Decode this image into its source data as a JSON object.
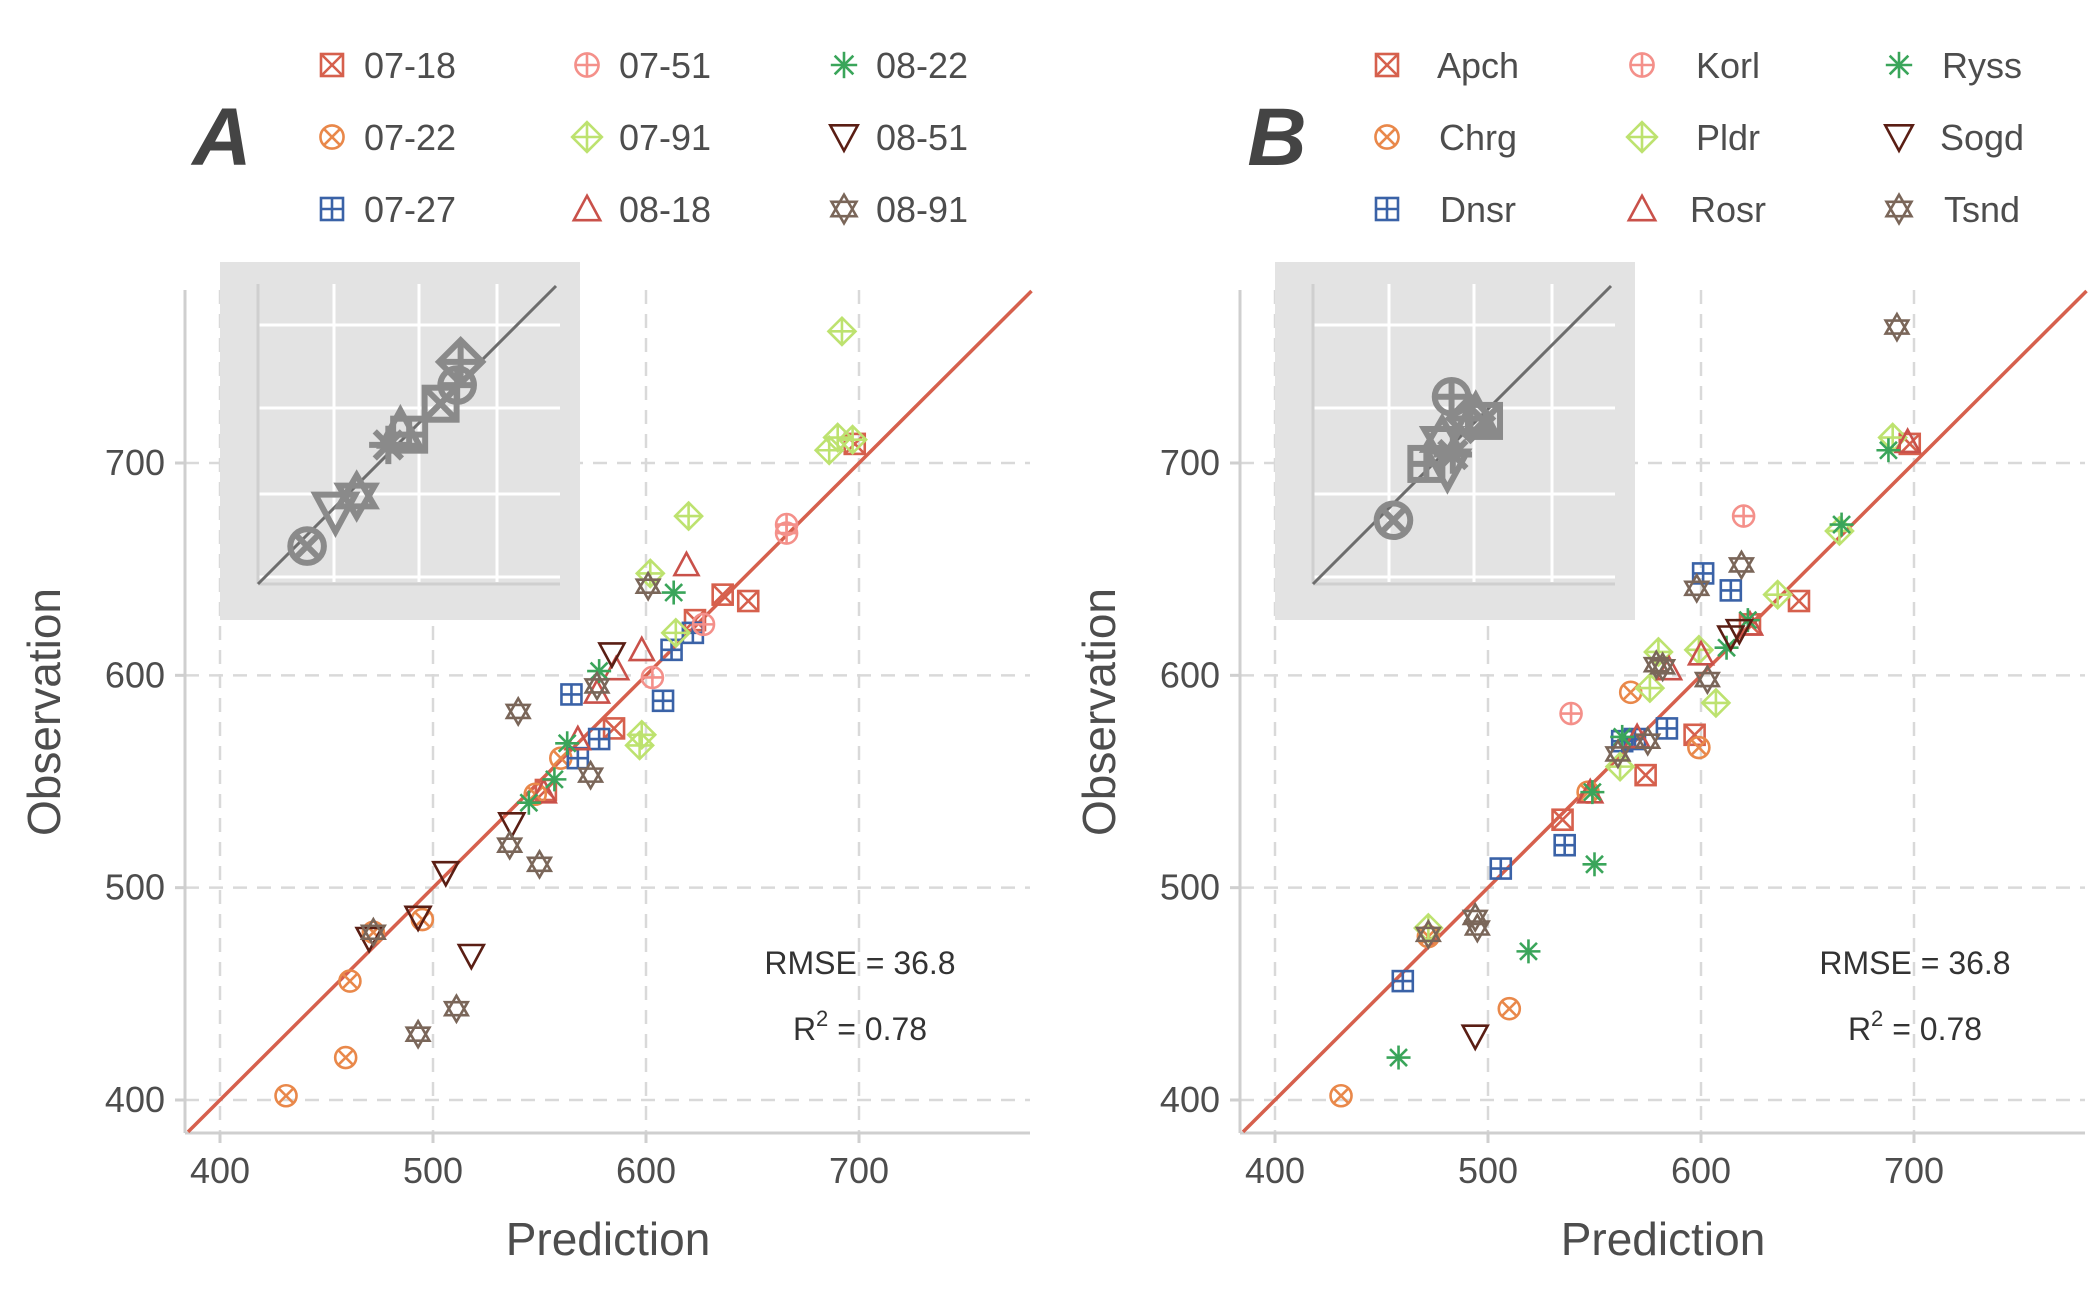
{
  "chart_data": [
    {
      "type": "scatter",
      "panel_label": "A",
      "xlabel": "Prediction",
      "ylabel": "Observation",
      "xlim": [
        385,
        780
      ],
      "ylim": [
        385,
        780
      ],
      "xticks": [
        400,
        500,
        600,
        700
      ],
      "yticks": [
        400,
        500,
        600,
        700
      ],
      "grid": true,
      "legend_position": "top",
      "reference_line": "y = x",
      "annotations": {
        "rmse": "RMSE = 36.8",
        "r2_prefix": "R",
        "r2_sup": "2",
        "r2_suffix": " = 0.78"
      },
      "series": [
        {
          "name": "07-18",
          "color": "#d6604d",
          "marker": "square-x",
          "points": [
            [
              553,
              546
            ],
            [
              585,
              575
            ],
            [
              623,
              626
            ],
            [
              636,
              638
            ],
            [
              648,
              635
            ],
            [
              698,
              709
            ]
          ]
        },
        {
          "name": "07-22",
          "color": "#e9884a",
          "marker": "circle-x",
          "points": [
            [
              431,
              402
            ],
            [
              459,
              420
            ],
            [
              461,
              456
            ],
            [
              472,
              479
            ],
            [
              495,
              485
            ],
            [
              548,
              544
            ],
            [
              560,
              561
            ]
          ]
        },
        {
          "name": "07-27",
          "color": "#3a62a7",
          "marker": "square-plus",
          "points": [
            [
              565,
              591
            ],
            [
              568,
              561
            ],
            [
              578,
              570
            ],
            [
              608,
              588
            ],
            [
              612,
              612
            ],
            [
              622,
              620
            ]
          ]
        },
        {
          "name": "07-51",
          "color": "#f4908a",
          "marker": "circle-plus",
          "points": [
            [
              603,
              599
            ],
            [
              627,
              624
            ],
            [
              666,
              667
            ],
            [
              666,
              671
            ]
          ]
        },
        {
          "name": "07-91",
          "color": "#bde26f",
          "marker": "diamond-plus",
          "points": [
            [
              597,
              567
            ],
            [
              598,
              572
            ],
            [
              602,
              648
            ],
            [
              614,
              620
            ],
            [
              620,
              675
            ],
            [
              686,
              706
            ],
            [
              690,
              712
            ],
            [
              697,
              711
            ],
            [
              692,
              762
            ]
          ]
        },
        {
          "name": "08-18",
          "color": "#c9514a",
          "marker": "triangle-up",
          "points": [
            [
              552,
              545
            ],
            [
              568,
              570
            ],
            [
              577,
              592
            ],
            [
              586,
              603
            ],
            [
              598,
              612
            ],
            [
              619,
              652
            ]
          ]
        },
        {
          "name": "08-22",
          "color": "#3aa55a",
          "marker": "asterisk",
          "points": [
            [
              545,
              540
            ],
            [
              557,
              551
            ],
            [
              563,
              568
            ],
            [
              578,
              602
            ],
            [
              613,
              639
            ]
          ]
        },
        {
          "name": "08-51",
          "color": "#5a1e14",
          "marker": "triangle-down",
          "points": [
            [
              470,
              476
            ],
            [
              493,
              486
            ],
            [
              506,
              507
            ],
            [
              518,
              468
            ],
            [
              537,
              530
            ],
            [
              584,
              610
            ]
          ]
        },
        {
          "name": "08-91",
          "color": "#7a6659",
          "marker": "star6",
          "points": [
            [
              472,
              479
            ],
            [
              493,
              431
            ],
            [
              511,
              443
            ],
            [
              536,
              520
            ],
            [
              540,
              583
            ],
            [
              550,
              511
            ],
            [
              574,
              553
            ],
            [
              577,
              595
            ],
            [
              601,
              642
            ]
          ]
        }
      ],
      "inset": {
        "background": "#e3e3e3",
        "line_color": "#6d6d6d",
        "marker_color": "#8a8a8a"
      }
    },
    {
      "type": "scatter",
      "panel_label": "B",
      "xlabel": "Prediction",
      "ylabel": "Observation",
      "xlim": [
        385,
        780
      ],
      "ylim": [
        385,
        780
      ],
      "xticks": [
        400,
        500,
        600,
        700
      ],
      "yticks": [
        400,
        500,
        600,
        700
      ],
      "grid": true,
      "legend_position": "top",
      "reference_line": "y = x",
      "annotations": {
        "rmse": "RMSE = 36.8",
        "r2_prefix": "R",
        "r2_sup": "2",
        "r2_suffix": " = 0.78"
      },
      "series": [
        {
          "name": "Apch",
          "color": "#d6604d",
          "marker": "square-x",
          "points": [
            [
              535,
              532
            ],
            [
              574,
              553
            ],
            [
              597,
              572
            ],
            [
              623,
              624
            ],
            [
              646,
              635
            ],
            [
              698,
              709
            ]
          ]
        },
        {
          "name": "Chrg",
          "color": "#e9884a",
          "marker": "circle-x",
          "points": [
            [
              431,
              402
            ],
            [
              472,
              477
            ],
            [
              510,
              443
            ],
            [
              547,
              545
            ],
            [
              567,
              592
            ],
            [
              599,
              566
            ]
          ]
        },
        {
          "name": "Dnsr",
          "color": "#3a62a7",
          "marker": "square-plus",
          "points": [
            [
              460,
              456
            ],
            [
              506,
              509
            ],
            [
              536,
              520
            ],
            [
              563,
              569
            ],
            [
              569,
              570
            ],
            [
              584,
              575
            ],
            [
              601,
              648
            ],
            [
              614,
              640
            ]
          ]
        },
        {
          "name": "Korl",
          "color": "#f4908a",
          "marker": "circle-plus",
          "points": [
            [
              539,
              582
            ],
            [
              620,
              675
            ]
          ]
        },
        {
          "name": "Pldr",
          "color": "#bde26f",
          "marker": "diamond-plus",
          "points": [
            [
              472,
              481
            ],
            [
              576,
              594
            ],
            [
              580,
              611
            ],
            [
              599,
              612
            ],
            [
              607,
              587
            ],
            [
              636,
              638
            ],
            [
              665,
              668
            ],
            [
              690,
              712
            ],
            [
              562,
              557
            ]
          ]
        },
        {
          "name": "Rosr",
          "color": "#c9514a",
          "marker": "triangle-up",
          "points": [
            [
              548,
              545
            ],
            [
              570,
              571
            ],
            [
              585,
              603
            ],
            [
              600,
              610
            ],
            [
              623,
              624
            ],
            [
              697,
              710
            ]
          ]
        },
        {
          "name": "Ryss",
          "color": "#3aa55a",
          "marker": "asterisk",
          "points": [
            [
              458,
              420
            ],
            [
              519,
              470
            ],
            [
              549,
              545
            ],
            [
              550,
              511
            ],
            [
              563,
              571
            ],
            [
              612,
              613
            ],
            [
              622,
              626
            ],
            [
              666,
              671
            ],
            [
              688,
              706
            ]
          ]
        },
        {
          "name": "Sogd",
          "color": "#5a1e14",
          "marker": "triangle-down",
          "points": [
            [
              494,
              430
            ],
            [
              614,
              618
            ],
            [
              618,
              621
            ]
          ]
        },
        {
          "name": "Tsnd",
          "color": "#7a6659",
          "marker": "star6",
          "points": [
            [
              472,
              478
            ],
            [
              494,
              486
            ],
            [
              495,
              481
            ],
            [
              561,
              563
            ],
            [
              575,
              569
            ],
            [
              579,
              605
            ],
            [
              582,
              604
            ],
            [
              598,
              641
            ],
            [
              603,
              598
            ],
            [
              619,
              652
            ],
            [
              692,
              764
            ]
          ]
        }
      ],
      "inset": {
        "background": "#e3e3e3",
        "line_color": "#6d6d6d",
        "marker_color": "#8a8a8a"
      }
    }
  ]
}
